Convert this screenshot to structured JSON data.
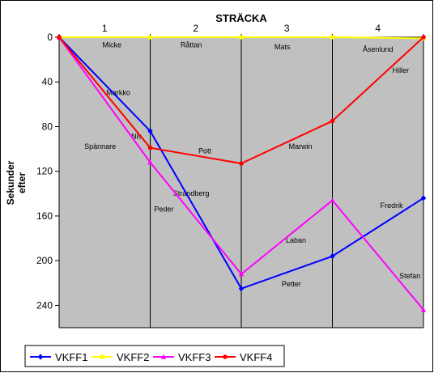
{
  "chart_data": {
    "type": "line",
    "title": "STRÄCKA",
    "ylabel_lines": [
      "Sekunder",
      "efter"
    ],
    "x": [
      0,
      1,
      2,
      3,
      4
    ],
    "x_tick_labels": [
      "1",
      "2",
      "3",
      "4"
    ],
    "y_ticks": [
      0,
      40,
      80,
      120,
      160,
      200,
      240
    ],
    "ylim": [
      0,
      260
    ],
    "y_inverted": true,
    "grid": "vertical",
    "legend_position": "bottom-left",
    "plot_background": "#c0c0c0",
    "series": [
      {
        "name": "VKFF1",
        "color": "#0000ff",
        "marker": "diamond",
        "values": [
          0,
          84,
          225,
          196,
          144
        ]
      },
      {
        "name": "VKFF2",
        "color": "#ffff00",
        "marker": "square",
        "values": [
          0,
          0,
          0,
          0,
          1
        ]
      },
      {
        "name": "VKFF3",
        "color": "#ff00ff",
        "marker": "triangle",
        "values": [
          0,
          112,
          212,
          146,
          244
        ]
      },
      {
        "name": "VKFF4",
        "color": "#ff0000",
        "marker": "circle",
        "values": [
          0,
          99,
          113,
          75,
          0
        ]
      }
    ],
    "annotations": [
      {
        "text": "Micke",
        "x": 0.58,
        "y": 6
      },
      {
        "text": "Råttan",
        "x": 1.45,
        "y": 6
      },
      {
        "text": "Mats",
        "x": 2.45,
        "y": 8
      },
      {
        "text": "Åsenlund",
        "x": 3.5,
        "y": 10
      },
      {
        "text": "Hiller",
        "x": 3.75,
        "y": 29
      },
      {
        "text": "Markko",
        "x": 0.65,
        "y": 49
      },
      {
        "text": "Nis",
        "x": 0.85,
        "y": 88
      },
      {
        "text": "Spännare",
        "x": 0.45,
        "y": 97
      },
      {
        "text": "Pott",
        "x": 1.6,
        "y": 101
      },
      {
        "text": "Marwin",
        "x": 2.65,
        "y": 97
      },
      {
        "text": "Strandberg",
        "x": 1.45,
        "y": 139
      },
      {
        "text": "Peder",
        "x": 1.15,
        "y": 153
      },
      {
        "text": "Fredrik",
        "x": 3.65,
        "y": 150
      },
      {
        "text": "Laban",
        "x": 2.6,
        "y": 181
      },
      {
        "text": "Stefan",
        "x": 3.85,
        "y": 213
      },
      {
        "text": "Petter",
        "x": 2.55,
        "y": 220
      }
    ]
  }
}
